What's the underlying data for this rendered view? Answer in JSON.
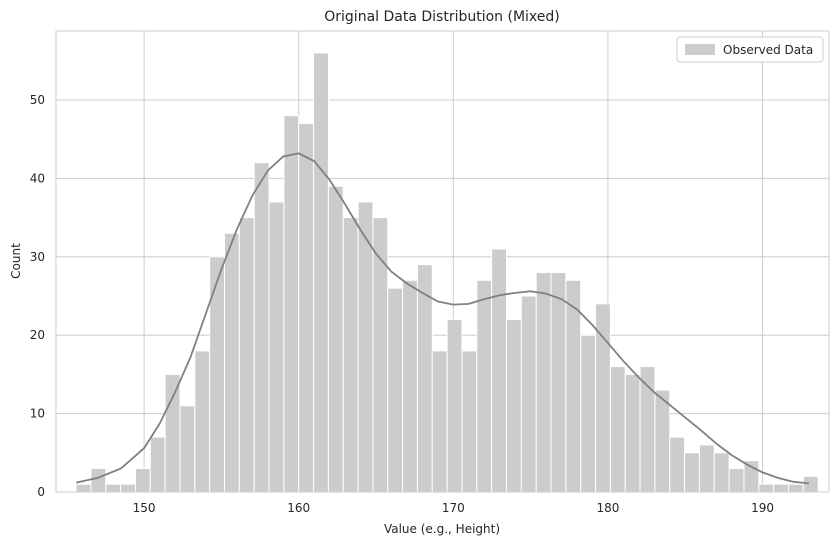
{
  "chart_data": {
    "type": "bar",
    "title": "Original Data Distribution (Mixed)",
    "xlabel": "Value (e.g., Height)",
    "ylabel": "Count",
    "xlim": [
      144.3,
      194.3
    ],
    "ylim": [
      0,
      58.8
    ],
    "xticks": [
      150,
      160,
      170,
      180,
      190
    ],
    "yticks": [
      0,
      10,
      20,
      30,
      40,
      50
    ],
    "grid": true,
    "legend": {
      "position": "top-right",
      "entries": [
        "Observed Data"
      ]
    },
    "colors": {
      "bar": "#cccccc",
      "bar_edge": "#ffffff",
      "kde": "#808080",
      "grid": "#cccccc",
      "axes_edge": "#cccccc"
    },
    "bin_start": 145.6,
    "bin_width": 0.96,
    "counts": [
      1,
      3,
      1,
      1,
      3,
      7,
      15,
      11,
      18,
      30,
      33,
      35,
      42,
      37,
      48,
      47,
      56,
      39,
      35,
      37,
      35,
      26,
      27,
      29,
      18,
      22,
      18,
      27,
      31,
      22,
      25,
      28,
      28,
      27,
      20,
      24,
      16,
      15,
      16,
      13,
      7,
      5,
      6,
      5,
      3,
      4,
      1,
      1,
      1,
      2
    ],
    "kde": {
      "x": [
        145.6,
        147,
        148.5,
        150,
        151,
        152,
        153,
        154,
        155,
        156,
        157,
        158,
        159,
        160,
        161,
        162,
        163,
        164,
        165,
        166,
        167,
        168,
        169,
        170,
        171,
        172,
        173,
        174,
        175,
        176,
        177,
        178,
        179,
        180,
        181,
        182,
        183,
        184,
        185,
        186,
        187,
        188,
        189,
        190,
        191,
        192,
        193
      ],
      "y": [
        1.2,
        1.8,
        3.0,
        5.6,
        8.7,
        12.7,
        17.2,
        22.8,
        28.4,
        33.5,
        37.8,
        41.0,
        42.8,
        43.2,
        42.2,
        39.8,
        36.7,
        33.4,
        30.4,
        28.1,
        26.6,
        25.4,
        24.3,
        23.9,
        24.0,
        24.6,
        25.1,
        25.4,
        25.6,
        25.3,
        24.6,
        23.3,
        21.3,
        19.0,
        16.7,
        14.6,
        12.7,
        11.1,
        9.5,
        7.9,
        6.2,
        4.7,
        3.5,
        2.5,
        1.8,
        1.3,
        1.1
      ]
    }
  }
}
